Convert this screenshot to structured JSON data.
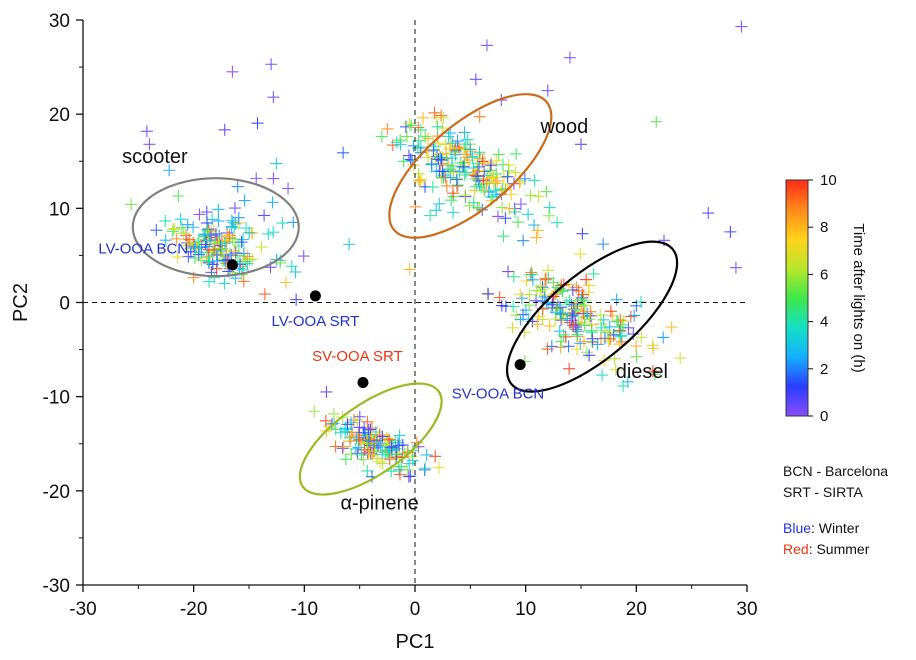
{
  "chart_data": {
    "type": "scatter",
    "xlabel": "PC1",
    "ylabel": "PC2",
    "xlim": [
      -30,
      30
    ],
    "ylim": [
      -30,
      30
    ],
    "xticks": [
      "-30",
      "-20",
      "-10",
      "0",
      "10",
      "20",
      "30"
    ],
    "yticks": [
      "-30",
      "-20",
      "-10",
      "0",
      "10",
      "20",
      "30"
    ],
    "grid": false,
    "zero_lines": "dashed",
    "colorbar": {
      "label": "Time after lights on (h)",
      "range": [
        0,
        10
      ],
      "ticks": [
        "0",
        "2",
        "4",
        "6",
        "8",
        "10"
      ],
      "colors": [
        "#8a4dff",
        "#2a3cff",
        "#14b0ff",
        "#13e0c4",
        "#3fe84a",
        "#b8e62a",
        "#ffd21a",
        "#ff8a1a",
        "#ff2a1a"
      ]
    },
    "clusters": [
      {
        "label": "scooter",
        "center": [
          -18,
          8
        ],
        "rx": 7.5,
        "ry": 5.2,
        "angle": 0,
        "color": "#808080"
      },
      {
        "label": "wood",
        "center": [
          5,
          14.5
        ],
        "rx": 9,
        "ry": 4.5,
        "angle": -40,
        "color": "#cc6a1a"
      },
      {
        "label": "diesel",
        "center": [
          16,
          -1.5
        ],
        "rx": 9.5,
        "ry": 4.5,
        "angle": -40,
        "color": "#000000"
      },
      {
        "label": "α-pinene",
        "center": [
          -4,
          -14.5
        ],
        "rx": 7.5,
        "ry": 3.7,
        "angle": -35,
        "color": "#99bb22"
      }
    ],
    "factors": [
      {
        "label": "LV-OOA BCN",
        "x": -16.5,
        "y": 4,
        "color": "#2233cc"
      },
      {
        "label": "LV-OOA SRT",
        "x": -9,
        "y": 0.7,
        "color": "#2233cc"
      },
      {
        "label": "SV-OOA SRT",
        "x": -4.7,
        "y": -8.5,
        "color": "#ee3311"
      },
      {
        "label": "SV-OOA BCN",
        "x": 9.5,
        "y": -6.6,
        "color": "#2233cc"
      }
    ],
    "point_clouds": [
      {
        "cx": -18,
        "cy": 6,
        "sx": 2.2,
        "sy": 1.8,
        "rho": -0.4,
        "n": 150,
        "tmin": 0,
        "tmax": 10
      },
      {
        "cx": -14,
        "cy": 10,
        "sx": 4,
        "sy": 4,
        "rho": 0,
        "n": 25,
        "tmin": 0,
        "tmax": 4
      },
      {
        "cx": 3,
        "cy": 15,
        "sx": 2.8,
        "sy": 2.5,
        "rho": -0.5,
        "n": 170,
        "tmin": 1,
        "tmax": 10
      },
      {
        "cx": 8,
        "cy": 11,
        "sx": 3,
        "sy": 2,
        "rho": -0.5,
        "n": 45,
        "tmin": 0,
        "tmax": 9
      },
      {
        "cx": 14,
        "cy": -1,
        "sx": 3.6,
        "sy": 2.6,
        "rho": -0.6,
        "n": 200,
        "tmin": 0,
        "tmax": 10
      },
      {
        "cx": -3.5,
        "cy": -15.2,
        "sx": 2.5,
        "sy": 1.5,
        "rho": -0.7,
        "n": 140,
        "tmin": 0,
        "tmax": 10
      }
    ],
    "scattered_points": [
      [
        -24,
        16.8,
        0.3
      ],
      [
        -16.5,
        24.5,
        0.2
      ],
      [
        -13,
        25.3,
        0.5
      ],
      [
        -12.8,
        21.8,
        0.3
      ],
      [
        6.5,
        27.3,
        0.2
      ],
      [
        5.5,
        23.7,
        0.6
      ],
      [
        7.8,
        21.5,
        0.4
      ],
      [
        14,
        26,
        0.3
      ],
      [
        12,
        22.5,
        0.5
      ],
      [
        15,
        16.8,
        0.8
      ],
      [
        29.5,
        29.3,
        0.2
      ],
      [
        21.8,
        19.2,
        5.2
      ],
      [
        26.5,
        9.5,
        0.7
      ],
      [
        28.5,
        7.5,
        1.2
      ],
      [
        29,
        3.7,
        0.3
      ],
      [
        22.5,
        6.6,
        0.5
      ],
      [
        17,
        6.2,
        2
      ],
      [
        -8,
        -9.5,
        0.6
      ],
      [
        -11,
        8.5,
        2.2
      ]
    ],
    "annotations": {
      "legend_lines": [
        "BCN - Barcelona",
        "SRT - SIRTA"
      ],
      "blue_key": "Blue",
      "blue_text": ": Winter",
      "red_key": "Red",
      "red_text": ": Summer"
    }
  }
}
